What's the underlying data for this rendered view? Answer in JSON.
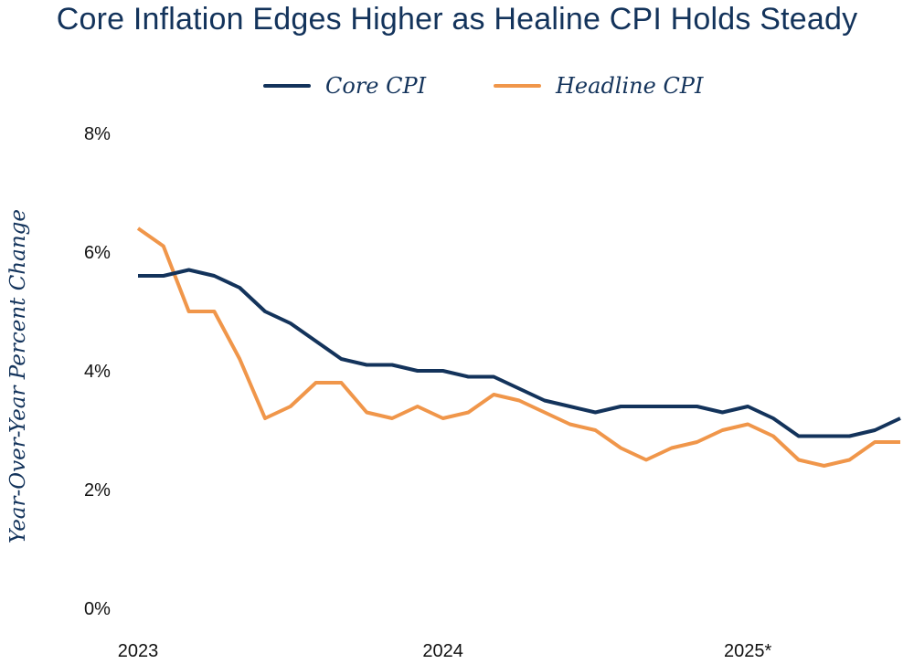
{
  "chart_data": {
    "type": "line",
    "title": "Core Inflation Edges Higher as Healine CPI Holds Steady",
    "xlabel": "",
    "ylabel": "Year-Over-Year Percent Change",
    "ylim": [
      0,
      8
    ],
    "y_ticks": [
      "0%",
      "2%",
      "4%",
      "6%",
      "8%"
    ],
    "x_ticks": [
      "2023",
      "2024",
      "2025*"
    ],
    "series": [
      {
        "name": "Core CPI",
        "color": "#13335b",
        "values": [
          5.6,
          5.6,
          5.7,
          5.6,
          5.4,
          5.0,
          4.8,
          4.5,
          4.2,
          4.1,
          4.1,
          4.0,
          4.0,
          3.9,
          3.9,
          3.7,
          3.5,
          3.4,
          3.3,
          3.4,
          3.4,
          3.4,
          3.4,
          3.3,
          3.4,
          3.2,
          2.9,
          2.9,
          2.9,
          3.0,
          3.2
        ]
      },
      {
        "name": "Headline CPI",
        "color": "#f0964a",
        "values": [
          6.4,
          6.1,
          5.0,
          5.0,
          4.2,
          3.2,
          3.4,
          3.8,
          3.8,
          3.3,
          3.2,
          3.4,
          3.2,
          3.3,
          3.6,
          3.5,
          3.3,
          3.1,
          3.0,
          2.7,
          2.5,
          2.7,
          2.8,
          3.0,
          3.1,
          2.9,
          2.5,
          2.4,
          2.5,
          2.8,
          2.8
        ]
      }
    ]
  }
}
